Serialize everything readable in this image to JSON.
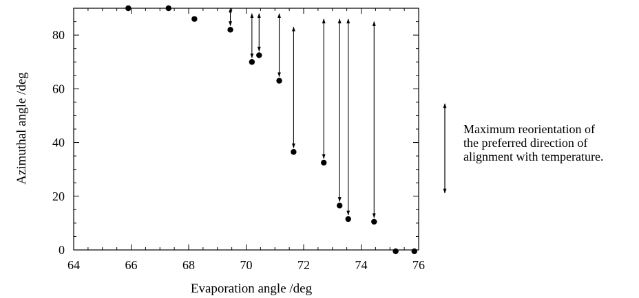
{
  "chart_data": {
    "type": "scatter",
    "title": "",
    "xlabel": "Evaporation angle /deg",
    "ylabel": "Azimuthal angle /deg",
    "xlim": [
      64,
      76
    ],
    "ylim": [
      0,
      90
    ],
    "x_ticks": [
      "64",
      "66",
      "68",
      "70",
      "72",
      "74",
      "76"
    ],
    "y_ticks": [
      "0",
      "20",
      "40",
      "60",
      "80"
    ],
    "grid": false,
    "points": [
      {
        "x": 65.9,
        "y": 90
      },
      {
        "x": 67.3,
        "y": 90
      },
      {
        "x": 68.2,
        "y": 86
      },
      {
        "x": 69.45,
        "y": 82
      },
      {
        "x": 70.2,
        "y": 70
      },
      {
        "x": 70.45,
        "y": 72.5
      },
      {
        "x": 71.15,
        "y": 63
      },
      {
        "x": 71.65,
        "y": 36.5
      },
      {
        "x": 72.7,
        "y": 32.5
      },
      {
        "x": 73.25,
        "y": 16.5
      },
      {
        "x": 73.55,
        "y": 11.5
      },
      {
        "x": 74.45,
        "y": 10.5
      },
      {
        "x": 75.2,
        "y": -0.5
      },
      {
        "x": 75.85,
        "y": -0.5
      }
    ],
    "reorientation_ranges": [
      {
        "x": 69.45,
        "y_low": 82,
        "y_high": 90
      },
      {
        "x": 70.2,
        "y_low": 70,
        "y_high": 88
      },
      {
        "x": 70.45,
        "y_low": 72.5,
        "y_high": 88
      },
      {
        "x": 71.15,
        "y_low": 63,
        "y_high": 88
      },
      {
        "x": 71.65,
        "y_low": 36.5,
        "y_high": 83
      },
      {
        "x": 72.7,
        "y_low": 32.5,
        "y_high": 86
      },
      {
        "x": 73.25,
        "y_low": 16.5,
        "y_high": 86
      },
      {
        "x": 73.55,
        "y_low": 11.5,
        "y_high": 86
      },
      {
        "x": 74.45,
        "y_low": 10.5,
        "y_high": 85
      }
    ],
    "legend": {
      "symbol": "double-headed-arrow",
      "lines": [
        "Maximum reorientation of",
        "the preferred direction of",
        "alignment with temperature."
      ]
    }
  }
}
